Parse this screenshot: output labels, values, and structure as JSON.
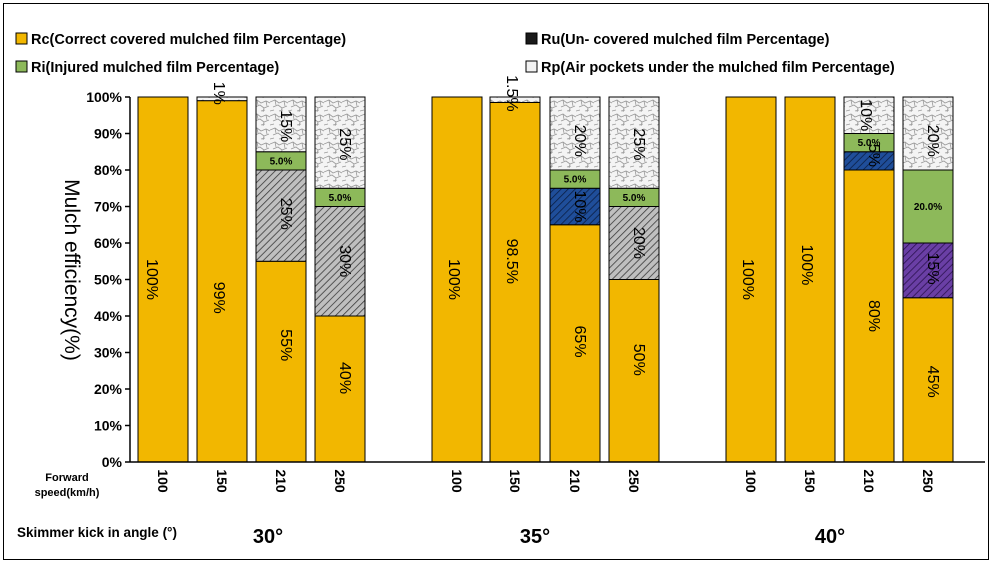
{
  "chart_data": {
    "type": "bar",
    "stacked": true,
    "legend": [
      {
        "key": "Rc",
        "label": "Rc(Correct covered mulched film Percentage)",
        "color": "#F2B700"
      },
      {
        "key": "Ru",
        "label": "Ru(Un- covered mulched film Percentage)",
        "color": "#1A1A1A"
      },
      {
        "key": "Ri",
        "label": "Ri(Injured mulched film Percentage)",
        "color": "#8DB95A"
      },
      {
        "key": "Rp",
        "label": "Rp(Air pockets under the mulched  film Percentage)",
        "color": "#F2F2F2"
      }
    ],
    "ylabel": "Mulch efficiency(%)",
    "ylim": [
      0,
      100
    ],
    "yticks": [
      "0%",
      "10%",
      "20%",
      "30%",
      "40%",
      "50%",
      "60%",
      "70%",
      "80%",
      "90%",
      "100%"
    ],
    "xaxis_side_label_1": "Forward",
    "xaxis_side_label_2": "speed(km/h)",
    "angle_axis_title": "Skimmer kick in angle (°)",
    "groups": [
      {
        "angle": "30°",
        "bars": [
          {
            "speed": "100",
            "Rc": 100,
            "Ru": 0,
            "Ri": 0,
            "Rp": 0,
            "labels": [
              {
                "text": "100%",
                "at": 50,
                "dx": -8
              }
            ]
          },
          {
            "speed": "150",
            "Rc": 99,
            "Ru": 0,
            "Ri": 0,
            "Rp": 1,
            "labels": [
              {
                "text": "99%",
                "at": 45,
                "dx": 0
              },
              {
                "text": "1%",
                "at": 101,
                "dx": 0
              }
            ]
          },
          {
            "speed": "210",
            "Rc": 55,
            "Ru": 25,
            "Ri": 5,
            "Rp": 15,
            "ruStyle": "hatch-gray",
            "labels": [
              {
                "text": "55%",
                "at": 32,
                "dx": 8
              },
              {
                "text": "25%",
                "at": 68,
                "dx": 8
              },
              {
                "text": "15%",
                "at": 92,
                "dx": 8
              }
            ],
            "riLabel": "5.0%"
          },
          {
            "speed": "250",
            "Rc": 40,
            "Ru": 30,
            "Ri": 5,
            "Rp": 25,
            "ruStyle": "hatch-gray",
            "labels": [
              {
                "text": "40%",
                "at": 23,
                "dx": 8
              },
              {
                "text": "30%",
                "at": 55,
                "dx": 8
              },
              {
                "text": "25%",
                "at": 87,
                "dx": 8
              }
            ],
            "riLabel": "5.0%"
          }
        ]
      },
      {
        "angle": "35°",
        "bars": [
          {
            "speed": "100",
            "Rc": 100,
            "Ru": 0,
            "Ri": 0,
            "Rp": 0,
            "labels": [
              {
                "text": "100%",
                "at": 50,
                "dx": 0
              }
            ]
          },
          {
            "speed": "150",
            "Rc": 98.5,
            "Ru": 0,
            "Ri": 0,
            "Rp": 1.5,
            "labels": [
              {
                "text": "98.5%",
                "at": 55,
                "dx": 0
              },
              {
                "text": "1.5%",
                "at": 101,
                "dx": 0
              }
            ]
          },
          {
            "speed": "210",
            "Rc": 65,
            "Ru": 10,
            "Ri": 5,
            "Rp": 20,
            "ruStyle": "hatch-blue",
            "labels": [
              {
                "text": "65%",
                "at": 33,
                "dx": 8
              },
              {
                "text": "10%",
                "at": 70,
                "dx": 8
              },
              {
                "text": "20%",
                "at": 88,
                "dx": 8
              }
            ],
            "riLabel": "5.0%"
          },
          {
            "speed": "250",
            "Rc": 50,
            "Ru": 20,
            "Ri": 5,
            "Rp": 25,
            "ruStyle": "hatch-gray",
            "labels": [
              {
                "text": "50%",
                "at": 28,
                "dx": 8
              },
              {
                "text": "20%",
                "at": 60,
                "dx": 8
              },
              {
                "text": "25%",
                "at": 87,
                "dx": 8
              }
            ],
            "riLabel": "5.0%"
          }
        ]
      },
      {
        "angle": "40°",
        "bars": [
          {
            "speed": "100",
            "Rc": 100,
            "Ru": 0,
            "Ri": 0,
            "Rp": 0,
            "labels": [
              {
                "text": "100%",
                "at": 50,
                "dx": 0
              }
            ]
          },
          {
            "speed": "150",
            "Rc": 100,
            "Ru": 0,
            "Ri": 0,
            "Rp": 0,
            "labels": [
              {
                "text": "100%",
                "at": 54,
                "dx": 0
              }
            ]
          },
          {
            "speed": "210",
            "Rc": 80,
            "Ru": 5,
            "Ri": 5,
            "Rp": 10,
            "ruStyle": "hatch-blue",
            "labels": [
              {
                "text": "80%",
                "at": 40,
                "dx": 8
              },
              {
                "text": "5%",
                "at": 84,
                "dx": 8
              },
              {
                "text": "10%",
                "at": 95,
                "dx": 0
              }
            ],
            "riLabel": "5.0%"
          },
          {
            "speed": "250",
            "Rc": 45,
            "Ru": 15,
            "Ri": 20,
            "Rp": 20,
            "ruStyle": "hatch-purple",
            "labels": [
              {
                "text": "45%",
                "at": 22,
                "dx": 8
              },
              {
                "text": "15%",
                "at": 53,
                "dx": 8
              },
              {
                "text": "20%",
                "at": 88,
                "dx": 8
              }
            ],
            "riLabel": "20.0%"
          }
        ]
      }
    ]
  }
}
